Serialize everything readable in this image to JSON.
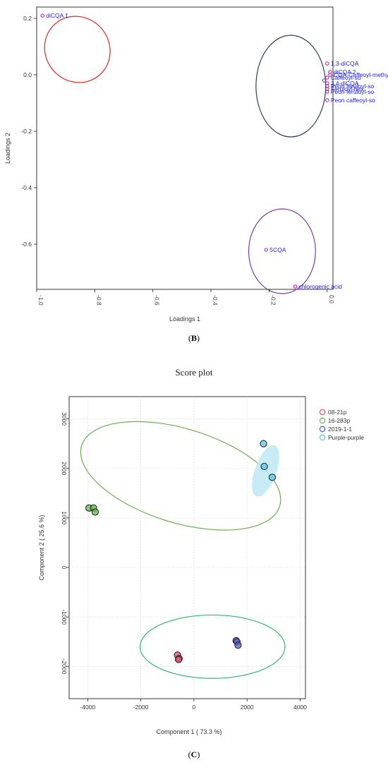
{
  "panel_b": {
    "label": "(B)",
    "letter": "B"
  },
  "panel_c": {
    "heading": "Score plot",
    "label": "(C)",
    "letter": "C"
  },
  "chart_data": [
    {
      "type": "scatter",
      "title": "",
      "xlabel": "Loadings 1",
      "ylabel": "Loadings 2",
      "xlim": [
        -1.0,
        0.02
      ],
      "ylim": [
        -0.76,
        0.24
      ],
      "xticks": [
        -1.0,
        -0.8,
        -0.6,
        -0.4,
        -0.2,
        0.0
      ],
      "xtick_labels": [
        "-1.0",
        "-0.8",
        "-0.6",
        "-0.4",
        "-0.2",
        "0.0"
      ],
      "yticks": [
        0.2,
        0.0,
        -0.2,
        -0.4,
        -0.6
      ],
      "ytick_labels": [
        "0.2",
        "0.0",
        "-0.2",
        "-0.4",
        "-0.6"
      ],
      "grid": false,
      "point_color": "#c000c0",
      "label_color": "#1a1ae0",
      "points": [
        {
          "x": -0.98,
          "y": 0.21,
          "label": "diCQA 1"
        },
        {
          "x": 0.0,
          "y": 0.04,
          "label": "1,3-diCQA"
        },
        {
          "x": 0.01,
          "y": 0.01,
          "label": "diCQA 2"
        },
        {
          "x": 0.01,
          "y": 0.0,
          "label": "CQA-Caffeoyl-methyl"
        },
        {
          "x": 0.0,
          "y": -0.01,
          "label": "Caffeoyl-so"
        },
        {
          "x": -0.01,
          "y": -0.02,
          "label": ""
        },
        {
          "x": 0.0,
          "y": -0.03,
          "label": "3,4-diCQA"
        },
        {
          "x": 0.0,
          "y": -0.04,
          "label": "Peon feruloyl-so"
        },
        {
          "x": 0.0,
          "y": -0.05,
          "label": "Feruloyl-hex"
        },
        {
          "x": 0.0,
          "y": -0.06,
          "label": "Peon feruloyl-so"
        },
        {
          "x": 0.0,
          "y": -0.09,
          "label": "Peon caffeoyl-so"
        },
        {
          "x": -0.21,
          "y": -0.62,
          "label": "5CQA"
        },
        {
          "x": -0.11,
          "y": -0.75,
          "label": "chlorogenic acid"
        }
      ],
      "ellipses": [
        {
          "cx": -0.86,
          "cy": 0.09,
          "rx": 0.11,
          "ry": 0.12,
          "angle": -40,
          "color": "#e8241c"
        },
        {
          "cx": -0.125,
          "cy": -0.04,
          "rx": 0.12,
          "ry": 0.18,
          "angle": 0,
          "color": "#2c3e5c"
        },
        {
          "cx": -0.155,
          "cy": -0.625,
          "rx": 0.115,
          "ry": 0.15,
          "angle": 0,
          "color": "#7a3fa0"
        }
      ]
    },
    {
      "type": "scatter",
      "title": "",
      "xlabel": "Component 1 ( 73.3 %)",
      "ylabel": "Component 2 ( 25.6 %)",
      "xlim": [
        -4700,
        4200
      ],
      "ylim": [
        -2650,
        3450
      ],
      "xticks": [
        -4000,
        -2000,
        0,
        2000,
        4000
      ],
      "xtick_labels": [
        "-4000",
        "-2000",
        "0",
        "2000",
        "4000"
      ],
      "yticks": [
        3000,
        2000,
        1000,
        0,
        -1000,
        -2000
      ],
      "ytick_labels": [
        "3000",
        "2000",
        "1000",
        "0",
        "-1000",
        "-2000"
      ],
      "grid": true,
      "legend_position": "top-right",
      "series": [
        {
          "name": "08-21p",
          "color": "#e0506a",
          "points": [
            [
              -620,
              -1770
            ],
            [
              -560,
              -1840
            ],
            [
              -580,
              -1860
            ]
          ]
        },
        {
          "name": "16-283p",
          "color": "#5fb84a",
          "points": [
            [
              -3950,
              1200
            ],
            [
              -3780,
              1200
            ],
            [
              -3720,
              1120
            ]
          ]
        },
        {
          "name": "2019-1-1",
          "color": "#5560c8",
          "points": [
            [
              1590,
              -1480
            ],
            [
              1620,
              -1500
            ],
            [
              1660,
              -1570
            ]
          ]
        },
        {
          "name": "Purple-purple",
          "color": "#55c8e6",
          "points": [
            [
              2620,
              2500
            ],
            [
              2650,
              2040
            ],
            [
              2950,
              1820
            ]
          ]
        }
      ],
      "ellipses": [
        {
          "cx": -500,
          "cy": 1850,
          "rx": 3900,
          "ry": 950,
          "angle": 17,
          "color": "#6ab04c",
          "fill": "none"
        },
        {
          "cx": 700,
          "cy": -1600,
          "rx": 2730,
          "ry": 640,
          "angle": 0,
          "color": "#2eb872",
          "fill": "none"
        },
        {
          "cx": 2700,
          "cy": 1950,
          "rx": 1000,
          "ry": 210,
          "angle": -70,
          "color": "#b7e7f2",
          "fill": "#bde9f5"
        }
      ]
    }
  ]
}
